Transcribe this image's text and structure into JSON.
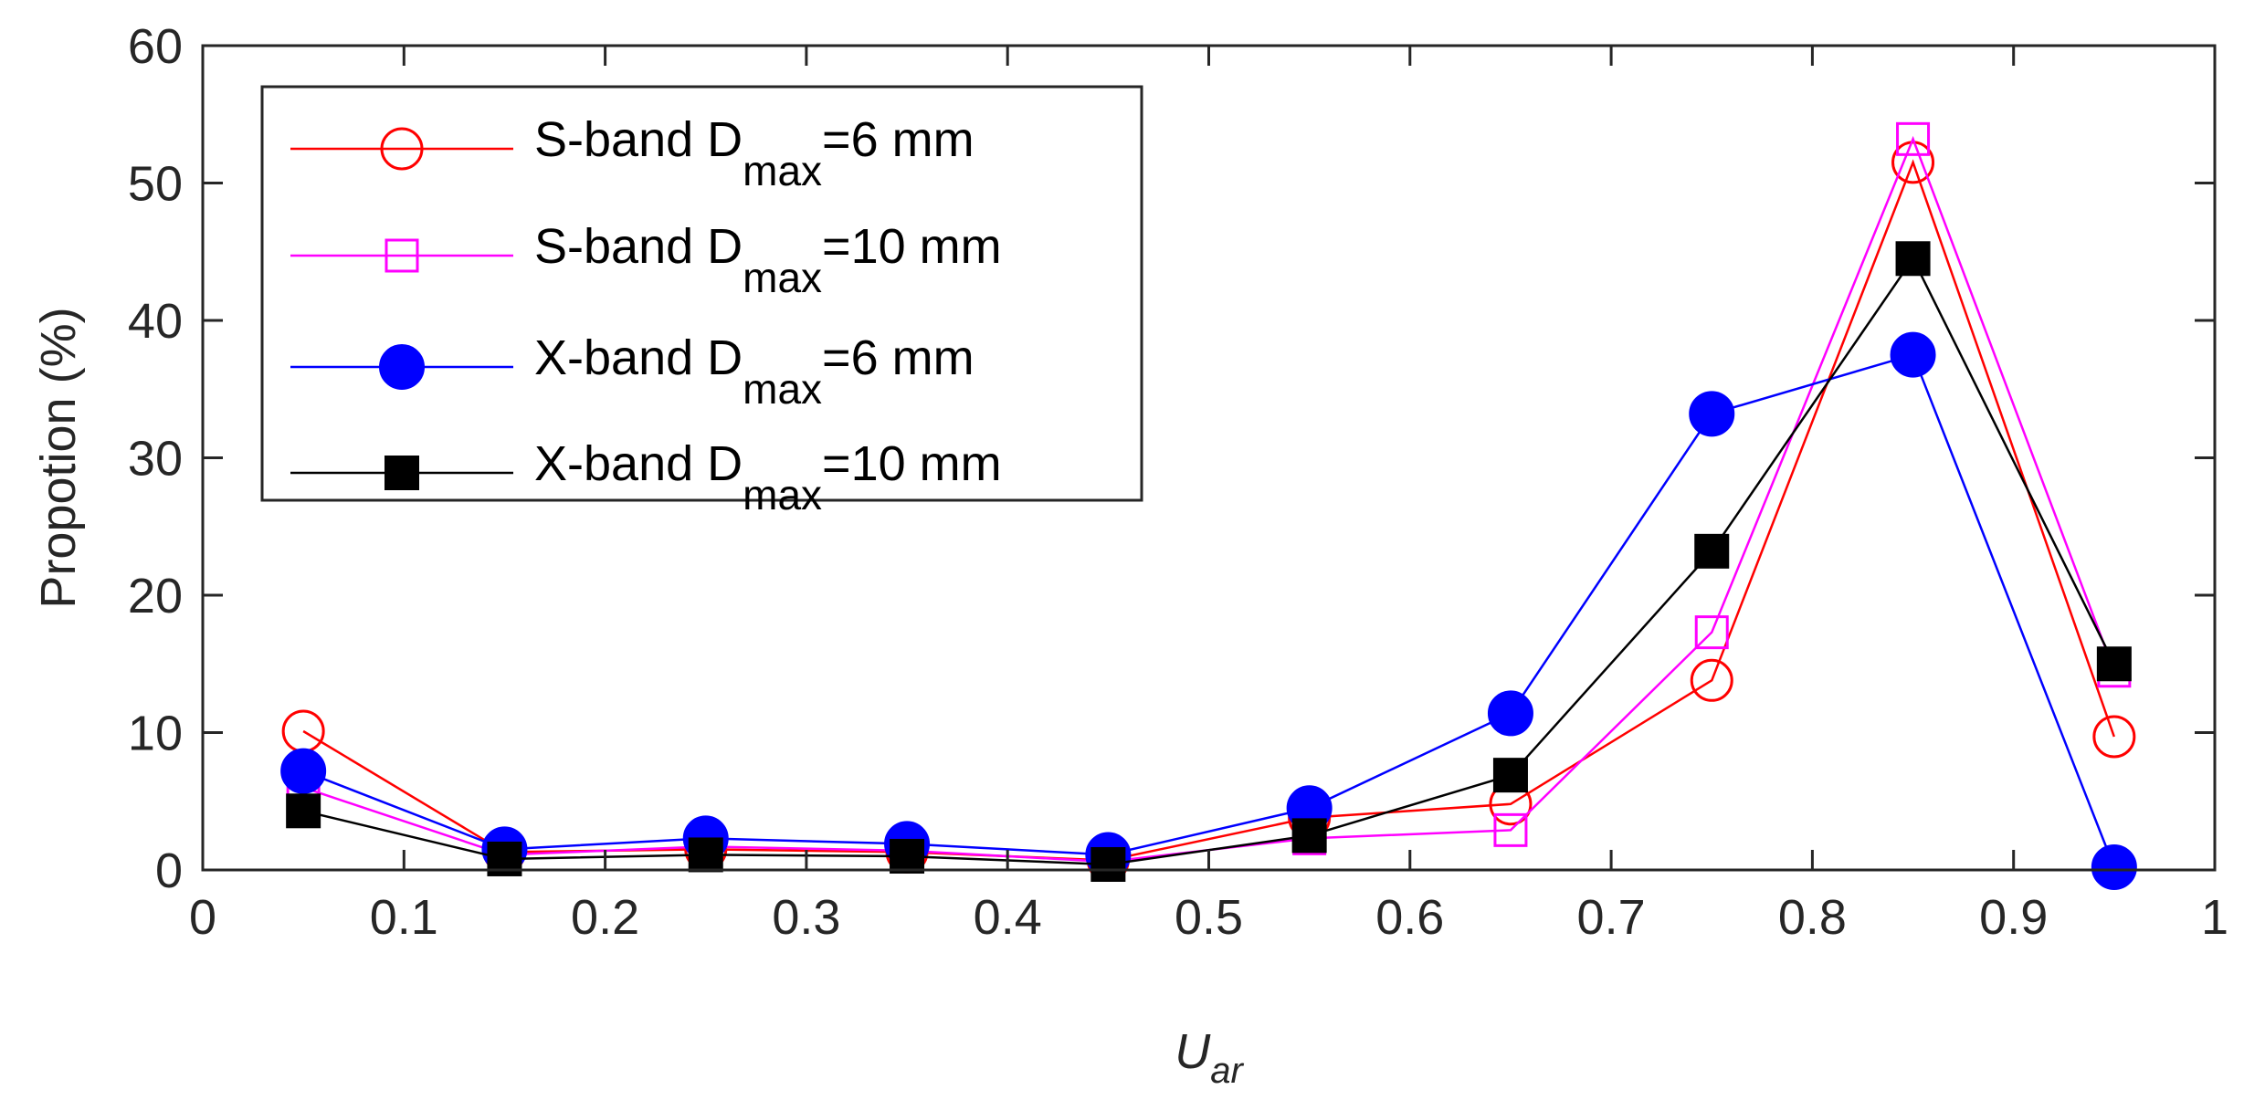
{
  "chart_data": {
    "type": "line",
    "title": "",
    "xlabel": {
      "main": "U",
      "sub": "ar"
    },
    "ylabel": "Propotion (%)",
    "xlim": [
      0,
      1
    ],
    "ylim": [
      0,
      60
    ],
    "xticks": [
      0,
      0.1,
      0.2,
      0.3,
      0.4,
      0.5,
      0.6,
      0.7,
      0.8,
      0.9,
      1
    ],
    "xtick_labels": [
      "0",
      "0.1",
      "0.2",
      "0.3",
      "0.4",
      "0.5",
      "0.6",
      "0.7",
      "0.8",
      "0.9",
      "1"
    ],
    "yticks": [
      0,
      10,
      20,
      30,
      40,
      50,
      60
    ],
    "ytick_labels": [
      "0",
      "10",
      "20",
      "30",
      "40",
      "50",
      "60"
    ],
    "grid": false,
    "legend_position": "top-left",
    "x": [
      0.05,
      0.15,
      0.25,
      0.35,
      0.45,
      0.55,
      0.65,
      0.75,
      0.85,
      0.95
    ],
    "series": [
      {
        "name": "S-band Dmax=6 mm",
        "label_pre": "S-band D",
        "label_sub": "max",
        "label_post": "=6 mm",
        "color": "#ff0000",
        "marker": "circle-open",
        "values": [
          10.1,
          1.3,
          1.5,
          1.3,
          0.7,
          3.8,
          4.8,
          13.8,
          51.5,
          9.7
        ]
      },
      {
        "name": "S-band Dmax=10 mm",
        "label_pre": "S-band D",
        "label_sub": "max",
        "label_post": "=10 mm",
        "color": "#ff00ff",
        "marker": "square-open",
        "values": [
          6.0,
          1.1,
          1.7,
          1.4,
          0.6,
          2.3,
          2.9,
          17.3,
          53.2,
          14.5
        ]
      },
      {
        "name": "X-band Dmax=6 mm",
        "label_pre": "X-band D",
        "label_sub": "max",
        "label_post": "=6 mm",
        "color": "#0000ff",
        "marker": "circle-filled",
        "values": [
          7.2,
          1.5,
          2.3,
          1.9,
          1.1,
          4.5,
          11.4,
          33.2,
          37.5,
          0.2
        ]
      },
      {
        "name": "X-band Dmax=10 mm",
        "label_pre": "X-band D",
        "label_sub": "max",
        "label_post": "=10 mm",
        "color": "#000000",
        "marker": "square-filled",
        "values": [
          4.3,
          0.8,
          1.1,
          1.0,
          0.4,
          2.5,
          6.9,
          23.2,
          44.5,
          15.0
        ]
      }
    ]
  }
}
